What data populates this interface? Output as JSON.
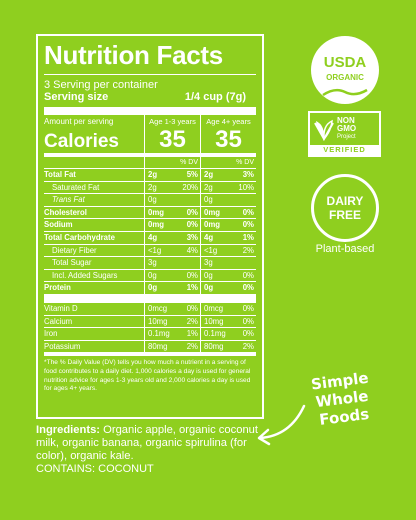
{
  "panel": {
    "title": "Nutrition Facts",
    "servings_per_container": "3 Serving per container",
    "serving_size_label": "Serving size",
    "serving_size_value": "1/4 cup (7g)",
    "amount_per_serving": "Amount per serving",
    "calories_label": "Calories",
    "col1_age": "Age 1-3 years",
    "col2_age": "Age 4+ years",
    "cal1": "35",
    "cal2": "35",
    "dv_header": "% DV"
  },
  "nutrients": [
    {
      "label": "Total Fat",
      "a1": "2g",
      "d1": "5%",
      "a2": "2g",
      "d2": "3%",
      "bold": true
    },
    {
      "label": "Saturated Fat",
      "a1": "2g",
      "d1": "20%",
      "a2": "2g",
      "d2": "10%",
      "indent": true
    },
    {
      "label": "Trans Fat",
      "a1": "0g",
      "d1": "",
      "a2": "0g",
      "d2": "",
      "indent": true,
      "italic_first": true
    },
    {
      "label": "Cholesterol",
      "a1": "0mg",
      "d1": "0%",
      "a2": "0mg",
      "d2": "0%",
      "bold": true
    },
    {
      "label": "Sodium",
      "a1": "0mg",
      "d1": "0%",
      "a2": "0mg",
      "d2": "0%",
      "bold": true
    },
    {
      "label": "Total Carbohydrate",
      "a1": "4g",
      "d1": "3%",
      "a2": "4g",
      "d2": "1%",
      "bold": true
    },
    {
      "label": "Dietary Fiber",
      "a1": "<1g",
      "d1": "4%",
      "a2": "<1g",
      "d2": "2%",
      "indent": true
    },
    {
      "label": "Total Sugar",
      "a1": "3g",
      "d1": "",
      "a2": "3g",
      "d2": "",
      "indent": true
    },
    {
      "label": "Incl. Added Sugars",
      "a1": "0g",
      "d1": "0%",
      "a2": "0g",
      "d2": "0%",
      "indent2": true
    },
    {
      "label": "Protein",
      "a1": "0g",
      "d1": "1%",
      "a2": "0g",
      "d2": "0%",
      "bold": true
    }
  ],
  "vitamins": [
    {
      "label": "Vitamin D",
      "a1": "0mcg",
      "d1": "0%",
      "a2": "0mcg",
      "d2": "0%"
    },
    {
      "label": "Calcium",
      "a1": "10mg",
      "d1": "2%",
      "a2": "10mg",
      "d2": "0%"
    },
    {
      "label": "Iron",
      "a1": "0.1mg",
      "d1": "1%",
      "a2": "0.1mg",
      "d2": "0%"
    },
    {
      "label": "Potassium",
      "a1": "80mg",
      "d1": "2%",
      "a2": "80mg",
      "d2": "2%"
    }
  ],
  "footnote": "*The % Daily Value (DV) tells you how much a nutrient in a serving of food contributes to a daily diet. 1,000 calories a day is used for general nutrition advice for ages 1-3 years old and 2,000 calories a day is used for ages 4+ years.",
  "ingredients": {
    "label": "Ingredients:",
    "text": " Organic apple, organic coconut milk, organic banana, organic spirulina (for color), organic kale.",
    "contains": "CONTAINS: COCONUT"
  },
  "badges": {
    "usda_line1": "USDA",
    "usda_line2": "ORGANIC",
    "nongmo_line1": "NON",
    "nongmo_line2": "GMO",
    "nongmo_line3": "Project",
    "nongmo_verified": "VERIFIED",
    "dairy_line1": "DAIRY",
    "dairy_line2": "FREE",
    "plant_based": "Plant-based",
    "simple_line1": "Simple",
    "simple_line2": "Whole Foods"
  },
  "colors": {
    "background": "#8fcf1f",
    "foreground": "#ffffff"
  }
}
